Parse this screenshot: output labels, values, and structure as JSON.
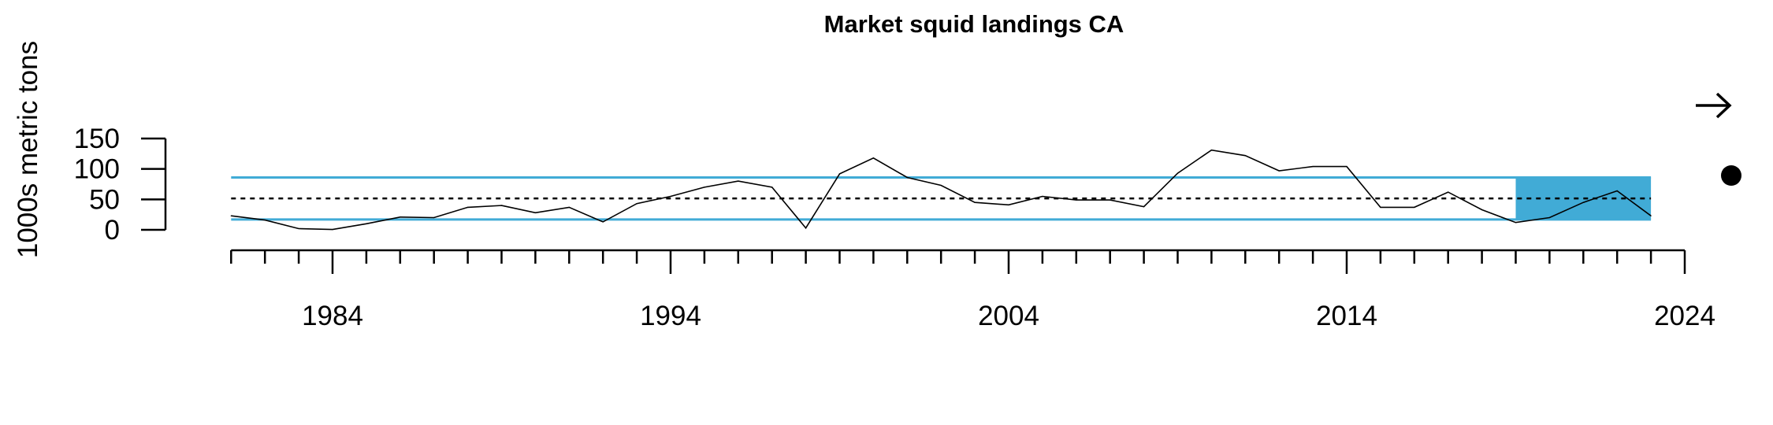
{
  "chart_data": {
    "type": "line",
    "title": "Market squid landings CA",
    "ylabel": "1000s metric tons",
    "xlabel": "",
    "xlim": [
      1980,
      2024
    ],
    "ylim": [
      0,
      150
    ],
    "y_ticks": [
      0,
      50,
      100,
      150
    ],
    "x_major_ticks": [
      1984,
      1994,
      2004,
      2014,
      2024
    ],
    "grid": false,
    "legend": "none",
    "colors": {
      "line": "#000000",
      "band": "#41ABD6",
      "mean": "#000000"
    },
    "reference_lines": {
      "mean": 51.5,
      "upper": 86,
      "lower": 17
    },
    "highlight_window": {
      "x_start": 2019,
      "x_end": 2023
    },
    "trend_indicator_icon": "right-arrow-icon",
    "mean_indicator_icon": "filled-circle-icon",
    "series": [
      {
        "x": [
          1981,
          1982,
          1983,
          1984,
          1985,
          1986,
          1987,
          1988,
          1989,
          1990,
          1991,
          1992,
          1993,
          1994,
          1995,
          1996,
          1997,
          1998,
          1999,
          2000,
          2001,
          2002,
          2003,
          2004,
          2005,
          2006,
          2007,
          2008,
          2009,
          2010,
          2011,
          2012,
          2013,
          2014,
          2015,
          2016,
          2017,
          2018,
          2019,
          2020,
          2021,
          2022,
          2023
        ],
        "values": [
          23,
          16,
          2,
          0.5,
          10,
          21,
          20,
          37,
          40,
          28,
          37,
          13,
          43,
          55,
          70,
          80,
          70,
          3,
          92,
          118,
          86,
          73,
          45,
          41,
          55,
          49,
          49,
          38,
          93,
          131,
          122,
          97,
          104,
          104,
          37,
          37,
          62,
          33,
          12,
          20,
          45,
          64,
          23
        ]
      }
    ]
  }
}
